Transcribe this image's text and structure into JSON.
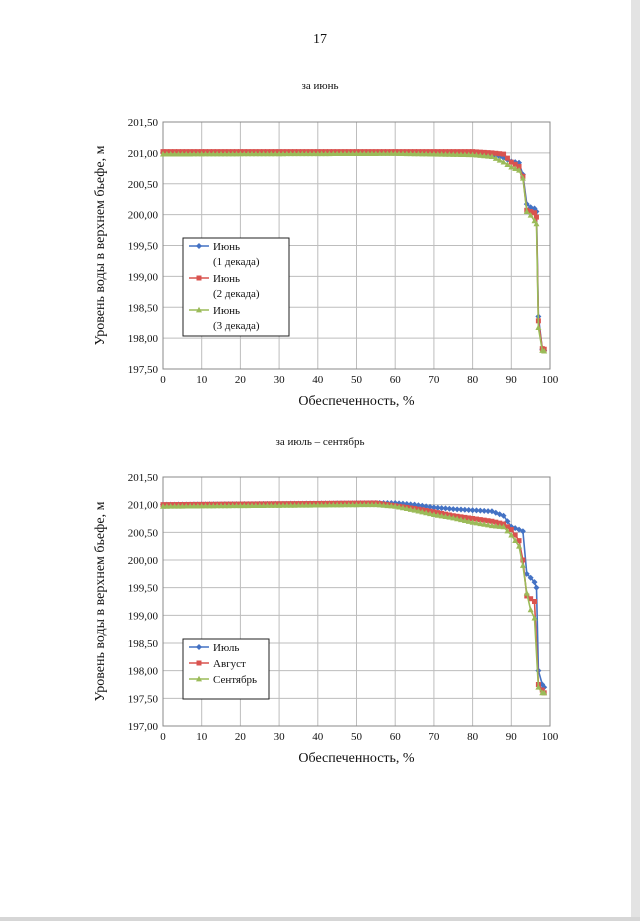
{
  "page_number": "17",
  "chart_data": [
    {
      "type": "line",
      "title": "за июнь",
      "xlabel": "Обеспеченность, %",
      "ylabel": "Уровень воды в верхнем бьефе, м",
      "xlim": [
        0,
        100
      ],
      "ylim": [
        197.5,
        201.5
      ],
      "x_ticks": [
        "0",
        "10",
        "20",
        "30",
        "40",
        "50",
        "60",
        "70",
        "80",
        "90",
        "100"
      ],
      "y_ticks": [
        "197,50",
        "198,00",
        "198,50",
        "199,00",
        "199,50",
        "200,00",
        "200,50",
        "201,00",
        "201,50"
      ],
      "grid": true,
      "legend_position": "left-middle",
      "series": [
        {
          "name": "Июнь\n(1 декада)",
          "color": "#4472c4",
          "marker": "diamond",
          "points": [
            [
              0,
              201.0
            ],
            [
              60,
              201.0
            ],
            [
              70,
              201.0
            ],
            [
              80,
              201.0
            ],
            [
              85,
              200.97
            ],
            [
              88,
              200.92
            ],
            [
              90,
              200.86
            ],
            [
              92,
              200.84
            ],
            [
              93,
              200.65
            ],
            [
              94,
              200.17
            ],
            [
              95,
              200.12
            ],
            [
              96,
              200.1
            ],
            [
              96.5,
              200.05
            ],
            [
              97,
              198.35
            ],
            [
              98,
              197.82
            ],
            [
              98.5,
              197.8
            ]
          ]
        },
        {
          "name": "Июнь\n(2 декада)",
          "color": "#d9534f",
          "marker": "square",
          "points": [
            [
              0,
              201.02
            ],
            [
              60,
              201.02
            ],
            [
              70,
              201.02
            ],
            [
              80,
              201.02
            ],
            [
              85,
              201.0
            ],
            [
              88,
              200.98
            ],
            [
              90,
              200.85
            ],
            [
              92,
              200.78
            ],
            [
              93,
              200.62
            ],
            [
              94,
              200.07
            ],
            [
              95,
              200.05
            ],
            [
              96,
              200.03
            ],
            [
              96.5,
              199.96
            ],
            [
              97,
              198.28
            ],
            [
              98,
              197.83
            ],
            [
              98.5,
              197.82
            ]
          ]
        },
        {
          "name": "Июнь\n(3 декада)",
          "color": "#9bbb59",
          "marker": "triangle",
          "points": [
            [
              0,
              200.98
            ],
            [
              60,
              200.99
            ],
            [
              70,
              200.98
            ],
            [
              80,
              200.97
            ],
            [
              85,
              200.94
            ],
            [
              88,
              200.85
            ],
            [
              90,
              200.77
            ],
            [
              92,
              200.72
            ],
            [
              93,
              200.59
            ],
            [
              94,
              200.05
            ],
            [
              95,
              199.99
            ],
            [
              96,
              199.9
            ],
            [
              96.5,
              199.85
            ],
            [
              97,
              198.17
            ],
            [
              98,
              197.8
            ],
            [
              98.5,
              197.79
            ]
          ]
        }
      ]
    },
    {
      "type": "line",
      "title": "за июль – сентябрь",
      "xlabel": "Обеспеченность, %",
      "ylabel": "Уровень воды в верхнем бьефе, м",
      "xlim": [
        0,
        100
      ],
      "ylim": [
        197.0,
        201.5
      ],
      "x_ticks": [
        "0",
        "10",
        "20",
        "30",
        "40",
        "50",
        "60",
        "70",
        "80",
        "90",
        "100"
      ],
      "y_ticks": [
        "197,00",
        "197,50",
        "198,00",
        "198,50",
        "199,00",
        "199,50",
        "200,00",
        "200,50",
        "201,00",
        "201,50"
      ],
      "grid": true,
      "legend_position": "bottom-left",
      "series": [
        {
          "name": "Июль",
          "color": "#4472c4",
          "marker": "diamond",
          "points": [
            [
              0,
              201.0
            ],
            [
              55,
              201.03
            ],
            [
              60,
              201.03
            ],
            [
              65,
              201.0
            ],
            [
              70,
              200.95
            ],
            [
              75,
              200.92
            ],
            [
              80,
              200.9
            ],
            [
              85,
              200.88
            ],
            [
              88,
              200.8
            ],
            [
              90,
              200.6
            ],
            [
              92,
              200.55
            ],
            [
              93,
              200.52
            ],
            [
              94,
              199.75
            ],
            [
              95,
              199.68
            ],
            [
              96,
              199.6
            ],
            [
              96.5,
              199.5
            ],
            [
              97,
              198.0
            ],
            [
              98,
              197.75
            ],
            [
              98.5,
              197.7
            ]
          ]
        },
        {
          "name": "Август",
          "color": "#d9534f",
          "marker": "square",
          "points": [
            [
              0,
              201.0
            ],
            [
              55,
              201.03
            ],
            [
              60,
              200.98
            ],
            [
              65,
              200.93
            ],
            [
              70,
              200.87
            ],
            [
              75,
              200.8
            ],
            [
              80,
              200.75
            ],
            [
              85,
              200.7
            ],
            [
              88,
              200.65
            ],
            [
              90,
              200.55
            ],
            [
              92,
              200.35
            ],
            [
              93,
              200.0
            ],
            [
              94,
              199.35
            ],
            [
              95,
              199.3
            ],
            [
              96,
              199.25
            ],
            [
              97,
              197.75
            ],
            [
              98,
              197.65
            ],
            [
              98.5,
              197.6
            ]
          ]
        },
        {
          "name": "Сентябрь",
          "color": "#9bbb59",
          "marker": "triangle",
          "points": [
            [
              0,
              200.97
            ],
            [
              55,
              201.0
            ],
            [
              60,
              200.97
            ],
            [
              65,
              200.9
            ],
            [
              70,
              200.82
            ],
            [
              75,
              200.76
            ],
            [
              80,
              200.68
            ],
            [
              85,
              200.62
            ],
            [
              88,
              200.6
            ],
            [
              90,
              200.45
            ],
            [
              92,
              200.25
            ],
            [
              93,
              199.9
            ],
            [
              94,
              199.4
            ],
            [
              95,
              199.1
            ],
            [
              96,
              198.95
            ],
            [
              97,
              197.7
            ],
            [
              98,
              197.6
            ],
            [
              98.5,
              197.6
            ]
          ]
        }
      ]
    }
  ]
}
